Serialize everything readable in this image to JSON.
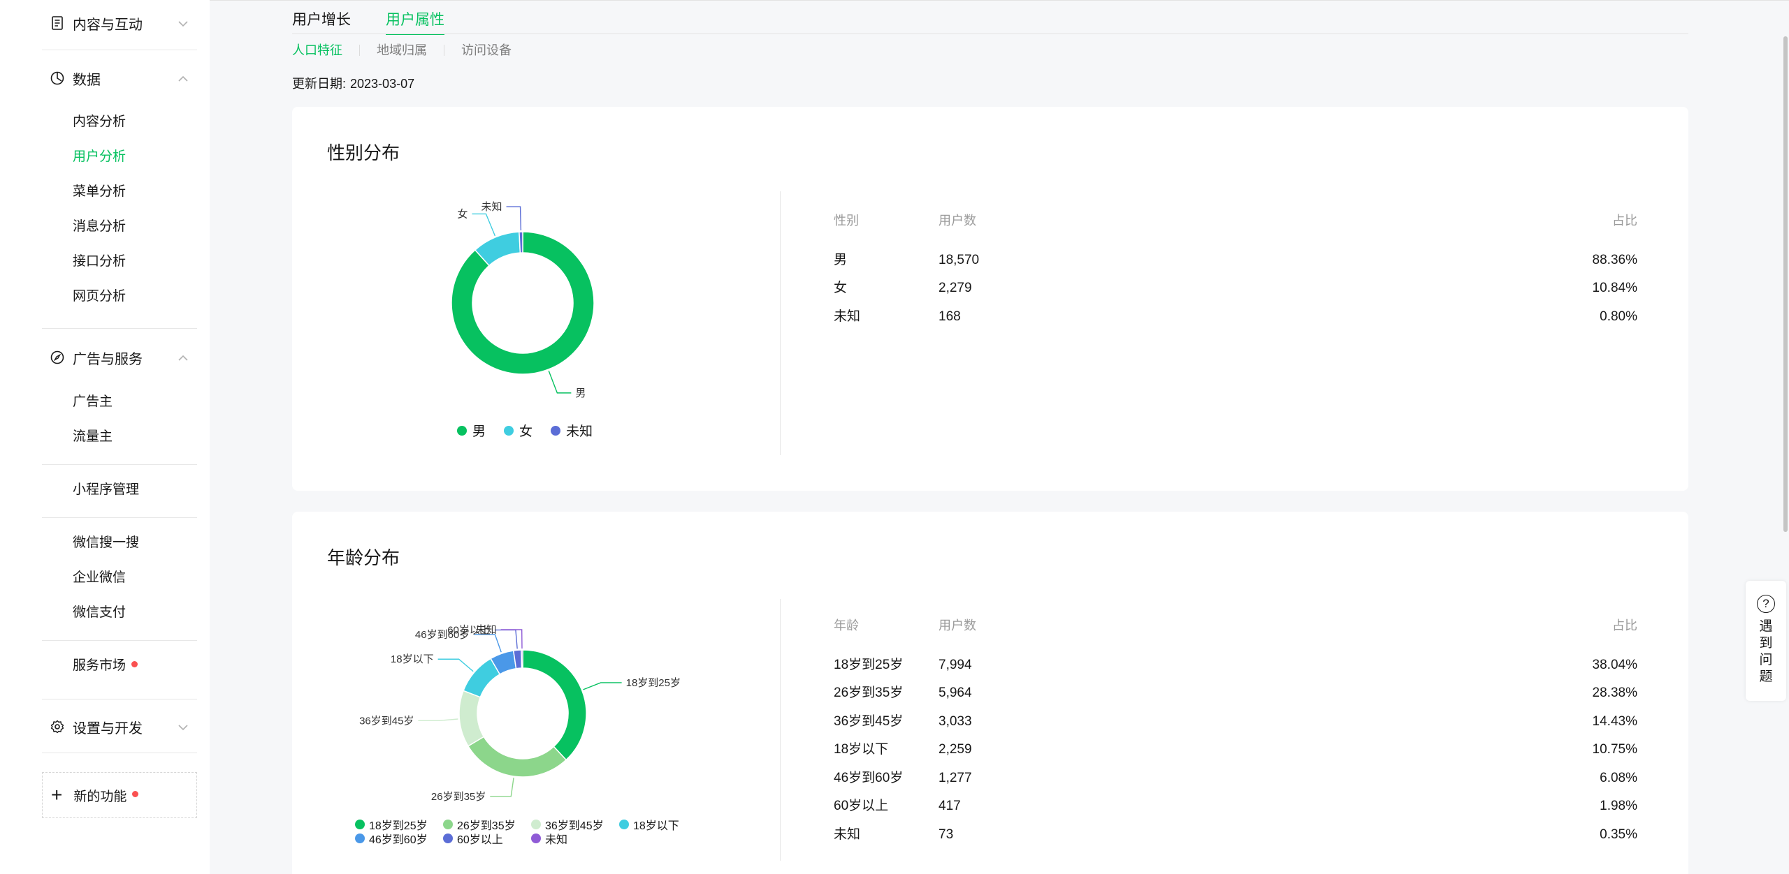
{
  "sidebar": {
    "content_group": "内容与互动",
    "data_group": "数据",
    "data_items": [
      "内容分析",
      "用户分析",
      "菜单分析",
      "消息分析",
      "接口分析",
      "网页分析"
    ],
    "ads_group": "广告与服务",
    "ads_items": [
      "广告主",
      "流量主"
    ],
    "mini_program": "小程序管理",
    "wechat_items": [
      "微信搜一搜",
      "企业微信",
      "微信支付"
    ],
    "service_market": "服务市场",
    "settings_group": "设置与开发",
    "new_features": "新的功能"
  },
  "tabs": [
    "用户增长",
    "用户属性"
  ],
  "subtabs": [
    "人口特征",
    "地域归属",
    "访问设备"
  ],
  "update": {
    "label": "更新日期:",
    "date": "2023-03-07"
  },
  "gender": {
    "title": "性别分布",
    "headers": [
      "性别",
      "用户数",
      "占比"
    ],
    "rows": [
      {
        "name": "男",
        "count": "18,570",
        "pct": "88.36%"
      },
      {
        "name": "女",
        "count": "2,279",
        "pct": "10.84%"
      },
      {
        "name": "未知",
        "count": "168",
        "pct": "0.80%"
      }
    ]
  },
  "age": {
    "title": "年龄分布",
    "headers": [
      "年龄",
      "用户数",
      "占比"
    ],
    "rows": [
      {
        "name": "18岁到25岁",
        "count": "7,994",
        "pct": "38.04%"
      },
      {
        "name": "26岁到35岁",
        "count": "5,964",
        "pct": "28.38%"
      },
      {
        "name": "36岁到45岁",
        "count": "3,033",
        "pct": "14.43%"
      },
      {
        "name": "18岁以下",
        "count": "2,259",
        "pct": "10.75%"
      },
      {
        "name": "46岁到60岁",
        "count": "1,277",
        "pct": "6.08%"
      },
      {
        "name": "60岁以上",
        "count": "417",
        "pct": "1.98%"
      },
      {
        "name": "未知",
        "count": "73",
        "pct": "0.35%"
      }
    ]
  },
  "chart_data": [
    {
      "type": "pie",
      "title": "性别分布",
      "categories": [
        "男",
        "女",
        "未知"
      ],
      "values": [
        18570,
        2279,
        168
      ],
      "colors": [
        "#07c160",
        "#3fcde0",
        "#5b6dd6"
      ],
      "legend": "bottom"
    },
    {
      "type": "pie",
      "title": "年龄分布",
      "categories": [
        "18岁到25岁",
        "26岁到35岁",
        "36岁到45岁",
        "18岁以下",
        "46岁到60岁",
        "60岁以上",
        "未知"
      ],
      "values": [
        7994,
        5964,
        3033,
        2259,
        1277,
        417,
        73
      ],
      "colors": [
        "#07c160",
        "#8cd68b",
        "#cfeccf",
        "#3fcde0",
        "#4a98e8",
        "#5b6dd6",
        "#8f5bd6"
      ],
      "legend": "bottom"
    }
  ],
  "help": {
    "icon": "question-circle-icon",
    "text": "遇到问题"
  }
}
